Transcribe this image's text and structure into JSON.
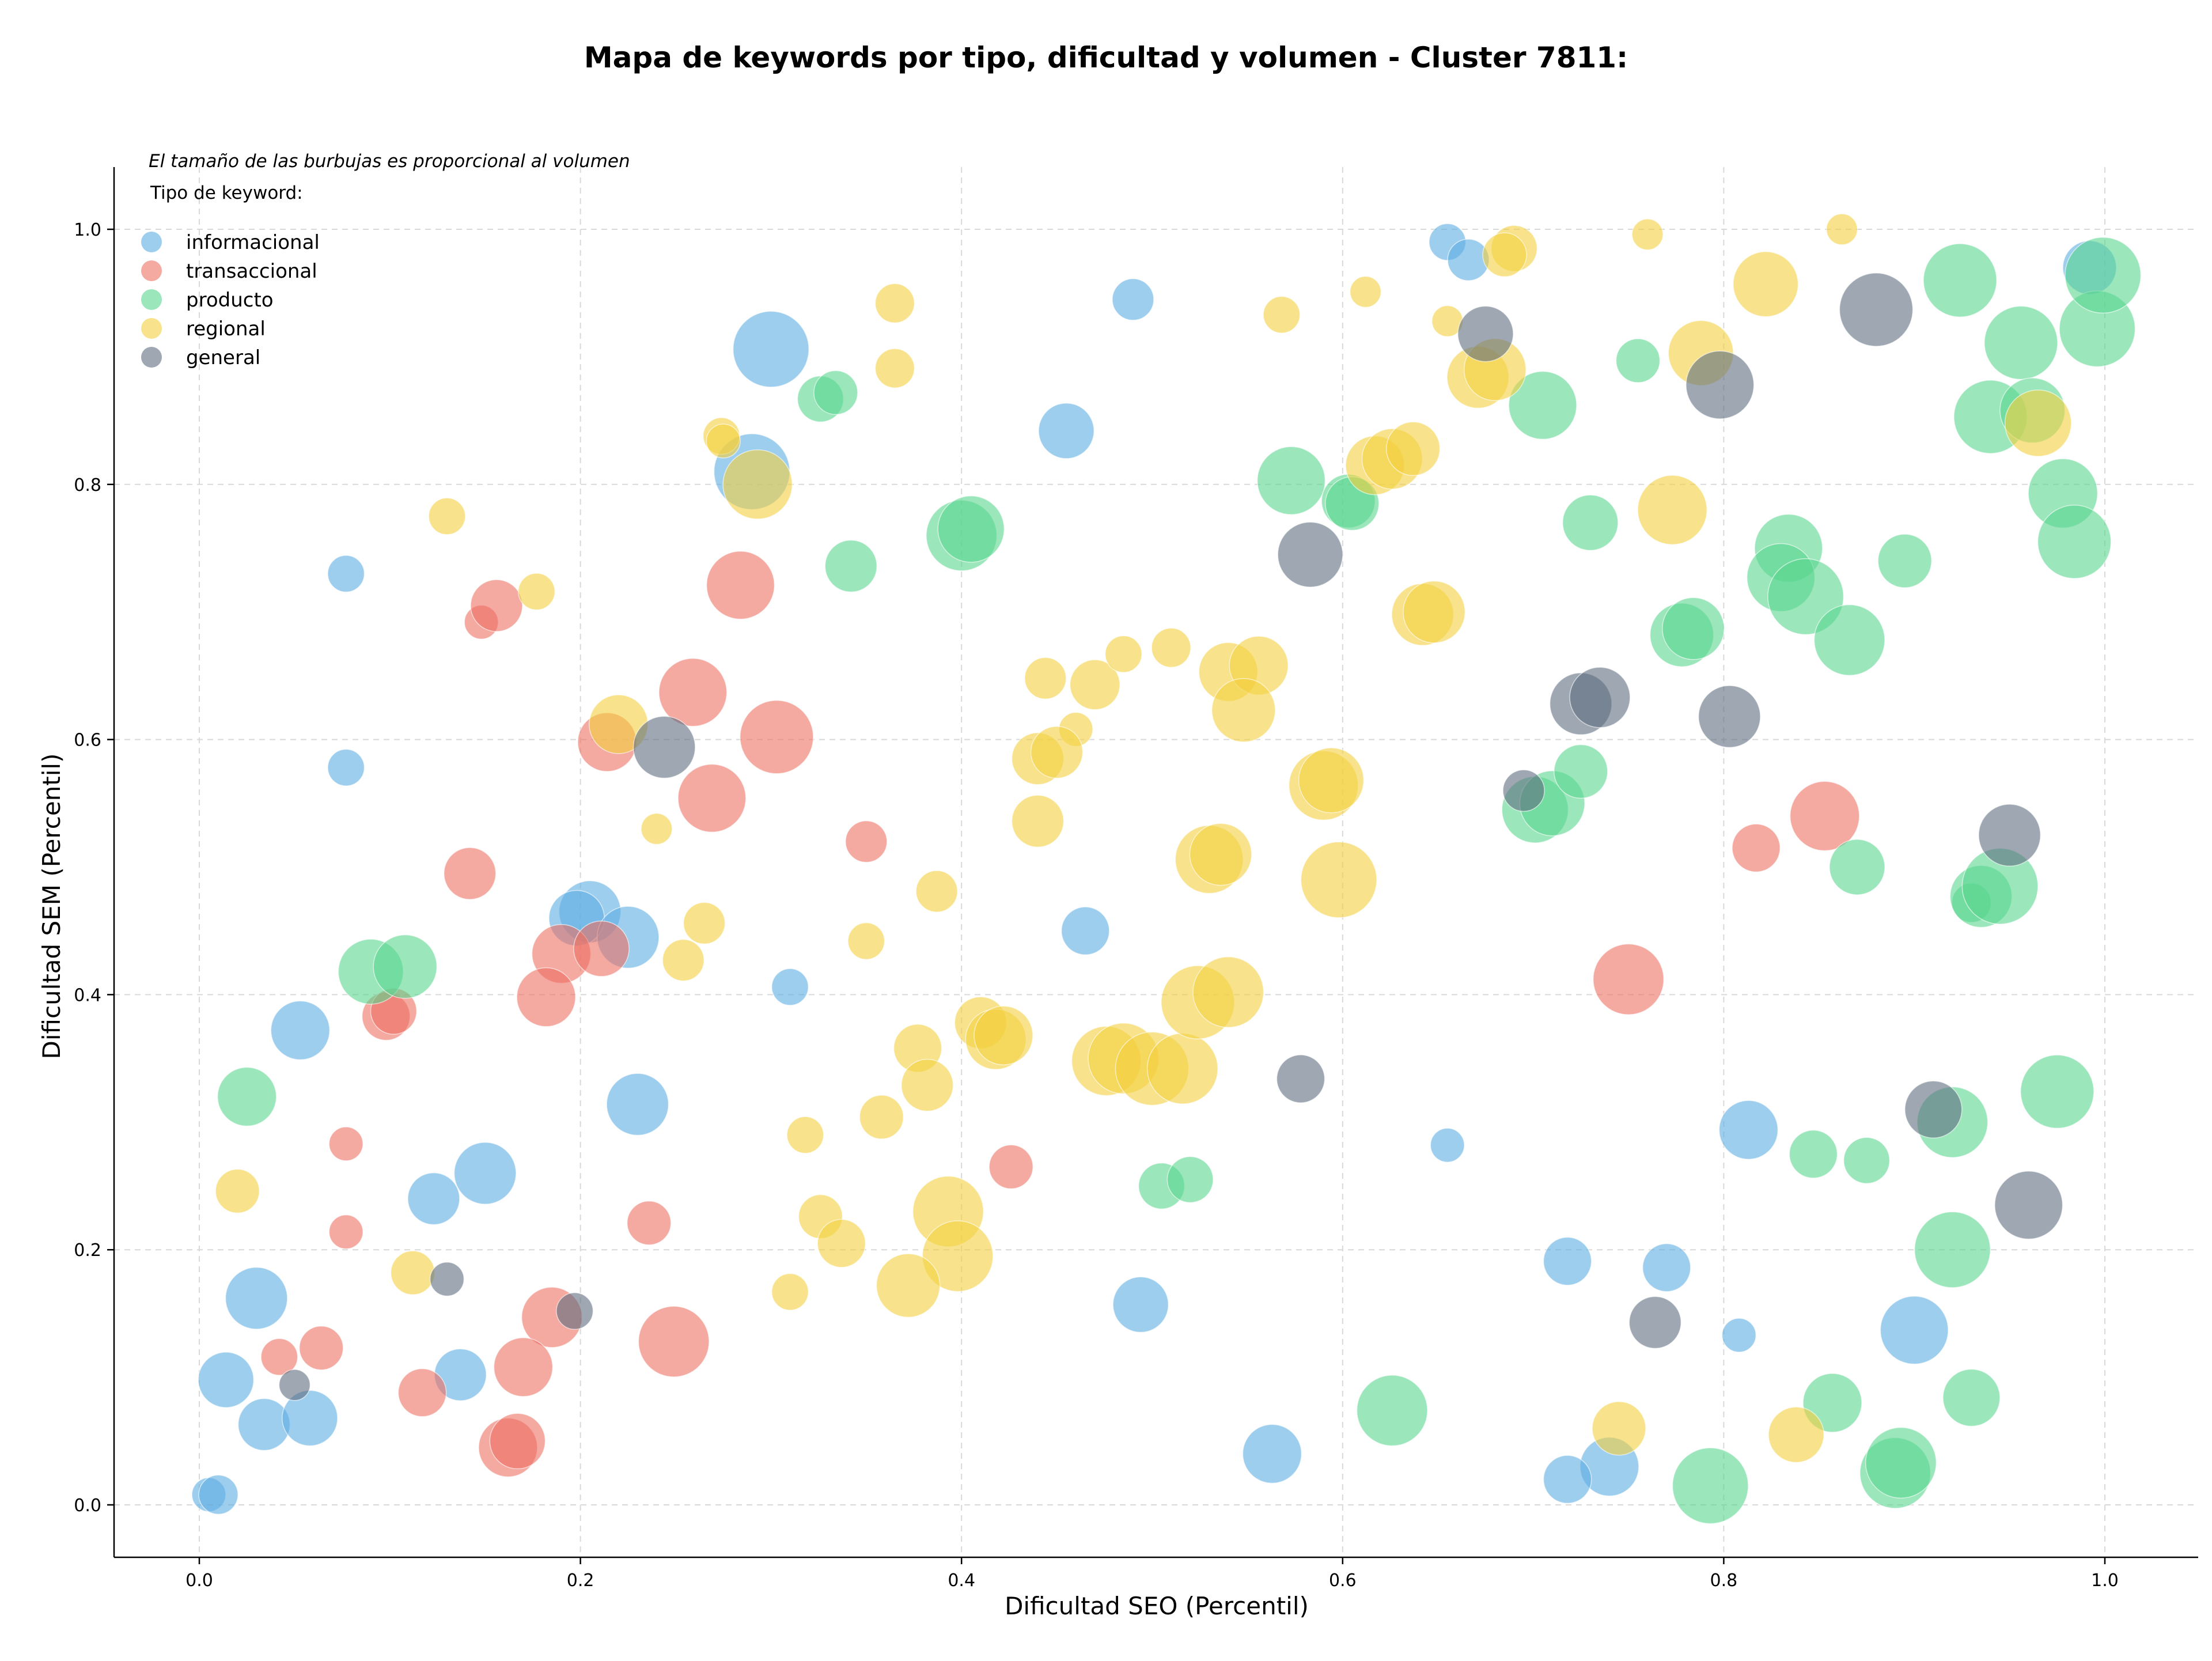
{
  "chart_data": {
    "type": "scatter",
    "title": "Mapa de keywords por tipo, dificultad y volumen - Cluster 7811:",
    "note": "El tamaño de las burbujas es proporcional al volumen",
    "xlabel": "Dificultad SEO (Percentil)",
    "ylabel": "Dificultad SEM (Percentil)",
    "xlim": [
      -0.045,
      1.05
    ],
    "ylim": [
      -0.04,
      1.05
    ],
    "xticks": [
      "0.0",
      "0.2",
      "0.4",
      "0.6",
      "0.8",
      "1.0"
    ],
    "yticks": [
      "0.0",
      "0.2",
      "0.4",
      "0.6",
      "0.8",
      "1.0"
    ],
    "grid": true,
    "legend_placement": "top-left",
    "legend_title": "Tipo de keyword:",
    "series": [
      {
        "name": "informacional",
        "color": "#5DADE2",
        "points": [
          [
            0.3,
            0.906,
            3
          ],
          [
            0.29,
            0.81,
            3
          ],
          [
            0.455,
            0.842,
            1.6
          ],
          [
            0.49,
            0.945,
            0.9
          ],
          [
            0.077,
            0.73,
            0.7
          ],
          [
            0.077,
            0.578,
            0.7
          ],
          [
            0.205,
            0.465,
            2
          ],
          [
            0.198,
            0.46,
            1.6
          ],
          [
            0.225,
            0.445,
            2
          ],
          [
            0.053,
            0.372,
            1.8
          ],
          [
            0.465,
            0.45,
            1.2
          ],
          [
            0.31,
            0.406,
            0.7
          ],
          [
            0.23,
            0.314,
            2
          ],
          [
            0.15,
            0.26,
            2
          ],
          [
            0.123,
            0.24,
            1.4
          ],
          [
            0.03,
            0.162,
            2
          ],
          [
            0.014,
            0.098,
            1.6
          ],
          [
            0.034,
            0.063,
            1.4
          ],
          [
            0.058,
            0.068,
            1.6
          ],
          [
            0.137,
            0.102,
            1.4
          ],
          [
            0.005,
            0.008,
            0.6
          ],
          [
            0.01,
            0.008,
            0.8
          ],
          [
            0.494,
            0.157,
            1.6
          ],
          [
            0.563,
            0.04,
            1.8
          ],
          [
            0.655,
            0.99,
            0.7
          ],
          [
            0.666,
            0.976,
            0.9
          ],
          [
            0.655,
            0.282,
            0.6
          ],
          [
            0.718,
            0.191,
            1.2
          ],
          [
            0.77,
            0.186,
            1.2
          ],
          [
            0.808,
            0.133,
            0.6
          ],
          [
            0.74,
            0.03,
            1.8
          ],
          [
            0.718,
            0.02,
            1.2
          ],
          [
            0.813,
            0.294,
            1.8
          ],
          [
            0.9,
            0.137,
            2.4
          ],
          [
            0.992,
            0.97,
            1.5
          ]
        ]
      },
      {
        "name": "transaccional",
        "color": "#EC7063",
        "points": [
          [
            0.148,
            0.692,
            0.6
          ],
          [
            0.156,
            0.705,
            1.4
          ],
          [
            0.284,
            0.721,
            2.4
          ],
          [
            0.259,
            0.637,
            2.4
          ],
          [
            0.303,
            0.602,
            2.8
          ],
          [
            0.214,
            0.598,
            1.8
          ],
          [
            0.269,
            0.554,
            2.4
          ],
          [
            0.35,
            0.52,
            0.9
          ],
          [
            0.142,
            0.495,
            1.4
          ],
          [
            0.19,
            0.432,
            1.8
          ],
          [
            0.211,
            0.436,
            1.6
          ],
          [
            0.182,
            0.398,
            1.8
          ],
          [
            0.098,
            0.383,
            1.2
          ],
          [
            0.102,
            0.387,
            1.1
          ],
          [
            0.077,
            0.283,
            0.6
          ],
          [
            0.077,
            0.214,
            0.6
          ],
          [
            0.236,
            0.221,
            1
          ],
          [
            0.185,
            0.147,
            1.9
          ],
          [
            0.249,
            0.128,
            2.6
          ],
          [
            0.042,
            0.116,
            0.7
          ],
          [
            0.064,
            0.123,
            1
          ],
          [
            0.117,
            0.088,
            1.2
          ],
          [
            0.17,
            0.108,
            1.8
          ],
          [
            0.162,
            0.045,
            1.8
          ],
          [
            0.167,
            0.05,
            1.6
          ],
          [
            0.426,
            0.265,
            1
          ],
          [
            0.75,
            0.412,
            2.6
          ],
          [
            0.853,
            0.54,
            2.5
          ],
          [
            0.817,
            0.515,
            1.2
          ]
        ]
      },
      {
        "name": "producto",
        "color": "#58D68D",
        "points": [
          [
            0.326,
            0.867,
            1.1
          ],
          [
            0.334,
            0.872,
            1
          ],
          [
            0.342,
            0.736,
            1.4
          ],
          [
            0.4,
            0.76,
            2.6
          ],
          [
            0.405,
            0.765,
            2.3
          ],
          [
            0.573,
            0.803,
            2.4
          ],
          [
            0.603,
            0.787,
            1.5
          ],
          [
            0.605,
            0.785,
            1.5
          ],
          [
            0.705,
            0.862,
            2.4
          ],
          [
            0.73,
            0.77,
            1.6
          ],
          [
            0.755,
            0.897,
            1
          ],
          [
            0.924,
            0.96,
            2.8
          ],
          [
            0.956,
            0.911,
            2.8
          ],
          [
            0.94,
            0.853,
            2.8
          ],
          [
            0.962,
            0.858,
            2.2
          ],
          [
            0.978,
            0.793,
            2.5
          ],
          [
            0.984,
            0.755,
            2.8
          ],
          [
            0.996,
            0.922,
            3
          ],
          [
            0.999,
            0.964,
            3
          ],
          [
            0.895,
            0.74,
            1.5
          ],
          [
            0.834,
            0.75,
            2.4
          ],
          [
            0.83,
            0.727,
            2.4
          ],
          [
            0.843,
            0.712,
            3
          ],
          [
            0.866,
            0.678,
            2.6
          ],
          [
            0.778,
            0.682,
            2.1
          ],
          [
            0.784,
            0.687,
            2
          ],
          [
            0.701,
            0.545,
            2.3
          ],
          [
            0.71,
            0.55,
            2.2
          ],
          [
            0.87,
            0.5,
            1.6
          ],
          [
            0.93,
            0.472,
            0.8
          ],
          [
            0.935,
            0.477,
            2
          ],
          [
            0.945,
            0.485,
            3
          ],
          [
            0.725,
            0.575,
            1.5
          ],
          [
            0.09,
            0.418,
            2.2
          ],
          [
            0.108,
            0.422,
            2.1
          ],
          [
            0.025,
            0.32,
            1.8
          ],
          [
            0.505,
            0.25,
            1.1
          ],
          [
            0.52,
            0.255,
            1.1
          ],
          [
            0.626,
            0.074,
            2.6
          ],
          [
            0.793,
            0.015,
            3
          ],
          [
            0.857,
            0.08,
            1.8
          ],
          [
            0.89,
            0.025,
            2.6
          ],
          [
            0.893,
            0.033,
            2.6
          ],
          [
            0.93,
            0.084,
            1.7
          ],
          [
            0.847,
            0.275,
            1.2
          ],
          [
            0.875,
            0.27,
            1.1
          ],
          [
            0.92,
            0.3,
            2.6
          ],
          [
            0.92,
            0.2,
            3
          ],
          [
            0.975,
            0.324,
            2.8
          ]
        ]
      },
      {
        "name": "regional",
        "color": "#F4D03F",
        "points": [
          [
            0.13,
            0.775,
            0.7
          ],
          [
            0.177,
            0.716,
            0.7
          ],
          [
            0.274,
            0.838,
            0.7
          ],
          [
            0.275,
            0.834,
            0.6
          ],
          [
            0.293,
            0.8,
            2.5
          ],
          [
            0.365,
            0.942,
            0.8
          ],
          [
            0.365,
            0.891,
            0.8
          ],
          [
            0.568,
            0.933,
            0.7
          ],
          [
            0.612,
            0.951,
            0.5
          ],
          [
            0.655,
            0.928,
            0.5
          ],
          [
            0.69,
            0.985,
            1.1
          ],
          [
            0.685,
            0.98,
            1
          ],
          [
            0.76,
            0.996,
            0.5
          ],
          [
            0.862,
            1.0,
            0.5
          ],
          [
            0.822,
            0.957,
            2.2
          ],
          [
            0.788,
            0.903,
            2.2
          ],
          [
            0.671,
            0.884,
            2
          ],
          [
            0.68,
            0.89,
            2
          ],
          [
            0.617,
            0.815,
            1.8
          ],
          [
            0.626,
            0.82,
            1.9
          ],
          [
            0.637,
            0.828,
            1.5
          ],
          [
            0.773,
            0.78,
            2.5
          ],
          [
            0.642,
            0.698,
            2
          ],
          [
            0.648,
            0.7,
            2
          ],
          [
            0.965,
            0.848,
            2.3
          ],
          [
            0.22,
            0.612,
            1.8
          ],
          [
            0.24,
            0.53,
            0.5
          ],
          [
            0.444,
            0.648,
            0.9
          ],
          [
            0.47,
            0.643,
            1.3
          ],
          [
            0.485,
            0.667,
            0.7
          ],
          [
            0.51,
            0.672,
            0.8
          ],
          [
            0.46,
            0.608,
            0.6
          ],
          [
            0.44,
            0.585,
            1.4
          ],
          [
            0.45,
            0.59,
            1.4
          ],
          [
            0.44,
            0.536,
            1.4
          ],
          [
            0.54,
            0.653,
            1.8
          ],
          [
            0.556,
            0.658,
            1.8
          ],
          [
            0.548,
            0.623,
            2.1
          ],
          [
            0.59,
            0.564,
            2.5
          ],
          [
            0.594,
            0.568,
            2.2
          ],
          [
            0.53,
            0.506,
            2.4
          ],
          [
            0.536,
            0.51,
            2
          ],
          [
            0.598,
            0.49,
            3
          ],
          [
            0.265,
            0.456,
            0.9
          ],
          [
            0.254,
            0.427,
            0.9
          ],
          [
            0.35,
            0.442,
            0.7
          ],
          [
            0.387,
            0.481,
            0.9
          ],
          [
            0.41,
            0.378,
            1.4
          ],
          [
            0.418,
            0.365,
            1.9
          ],
          [
            0.422,
            0.368,
            1.8
          ],
          [
            0.377,
            0.358,
            1.2
          ],
          [
            0.382,
            0.329,
            1.4
          ],
          [
            0.476,
            0.348,
            2.5
          ],
          [
            0.485,
            0.35,
            2.6
          ],
          [
            0.5,
            0.342,
            2.8
          ],
          [
            0.516,
            0.342,
            2.6
          ],
          [
            0.524,
            0.394,
            2.8
          ],
          [
            0.54,
            0.402,
            2.6
          ],
          [
            0.318,
            0.29,
            0.7
          ],
          [
            0.358,
            0.304,
            1
          ],
          [
            0.326,
            0.226,
            1
          ],
          [
            0.337,
            0.205,
            1.2
          ],
          [
            0.31,
            0.167,
            0.7
          ],
          [
            0.393,
            0.23,
            2.6
          ],
          [
            0.398,
            0.195,
            2.6
          ],
          [
            0.372,
            0.172,
            2.1
          ],
          [
            0.112,
            0.182,
            1
          ],
          [
            0.02,
            0.246,
            1
          ],
          [
            0.745,
            0.06,
            1.5
          ],
          [
            0.838,
            0.055,
            1.6
          ]
        ]
      },
      {
        "name": "general",
        "color": "#5D6D7E",
        "points": [
          [
            0.244,
            0.594,
            2
          ],
          [
            0.583,
            0.745,
            2.2
          ],
          [
            0.675,
            0.918,
            1.6
          ],
          [
            0.798,
            0.878,
            2.4
          ],
          [
            0.88,
            0.937,
            2.8
          ],
          [
            0.725,
            0.628,
            2
          ],
          [
            0.735,
            0.633,
            1.9
          ],
          [
            0.803,
            0.618,
            2
          ],
          [
            0.695,
            0.56,
            0.9
          ],
          [
            0.95,
            0.525,
            2
          ],
          [
            0.578,
            0.334,
            1.2
          ],
          [
            0.91,
            0.31,
            1.7
          ],
          [
            0.96,
            0.235,
            2.4
          ],
          [
            0.764,
            0.143,
            1.4
          ],
          [
            0.13,
            0.177,
            0.6
          ],
          [
            0.197,
            0.152,
            0.7
          ],
          [
            0.05,
            0.094,
            0.5
          ]
        ]
      }
    ]
  }
}
